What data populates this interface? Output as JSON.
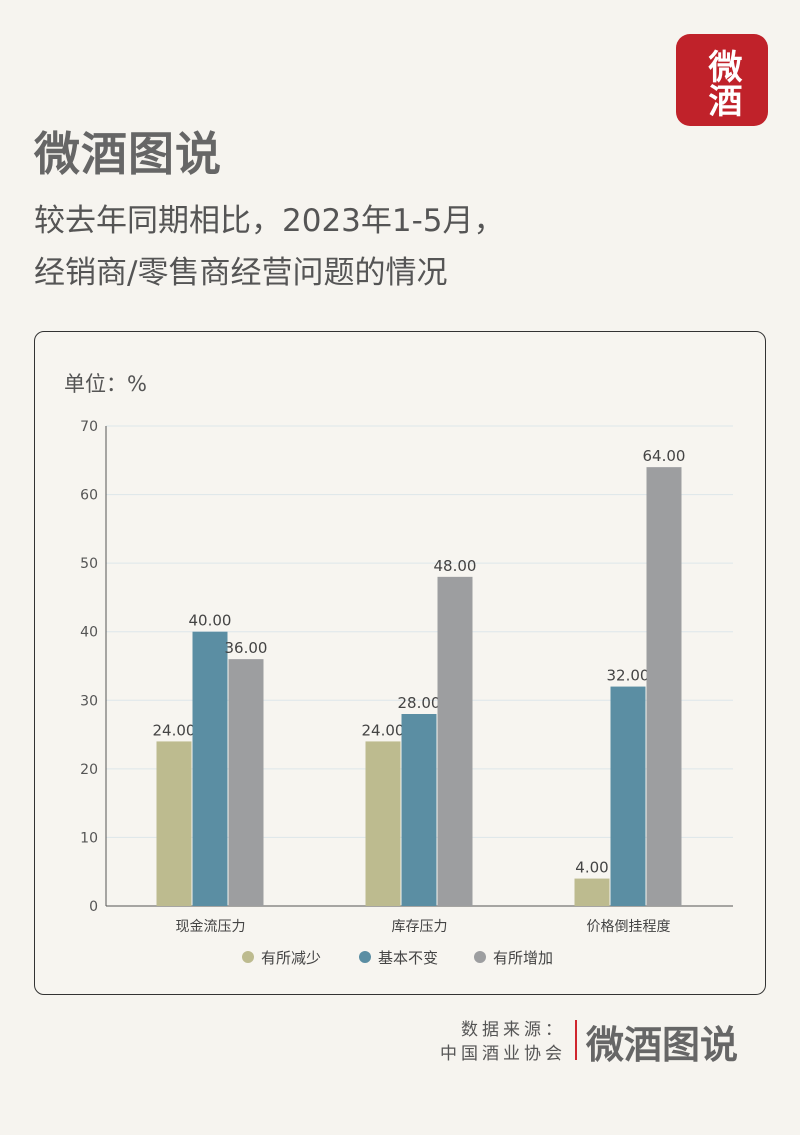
{
  "logo": {
    "app_icon_text": "微酒",
    "brand": "微酒图说"
  },
  "title": {
    "line1": "较去年同期相比，2023年1-5月，",
    "line2": "经销商/零售商经营问题的情况"
  },
  "source": {
    "label": "数据来源：",
    "value": "中国酒业协会",
    "brand": "微酒图说"
  },
  "chart_data": {
    "type": "bar",
    "unit_label": "单位：%",
    "categories": [
      "现金流压力",
      "库存压力",
      "价格倒挂程度"
    ],
    "series": [
      {
        "name": "有所减少",
        "color": "#bdbb8f",
        "values": [
          24,
          24,
          4
        ]
      },
      {
        "name": "基本不变",
        "color": "#5b8ea3",
        "values": [
          40,
          28,
          32
        ]
      },
      {
        "name": "有所增加",
        "color": "#9d9ea0",
        "values": [
          36,
          48,
          64
        ]
      }
    ],
    "ylim": [
      0,
      70
    ],
    "yticks": [
      0,
      10,
      20,
      30,
      40,
      50,
      60,
      70
    ],
    "grid": true,
    "legend": "bottom"
  }
}
